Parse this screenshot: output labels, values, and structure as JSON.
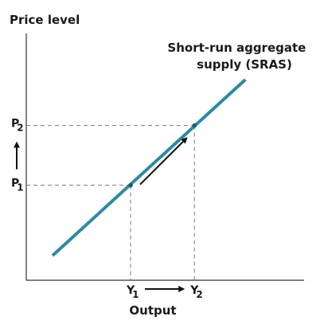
{
  "chart_data": {
    "type": "line",
    "ylabel": "Price level",
    "xlabel": "Output",
    "curve_label": [
      "Short-run aggregate",
      "supply (SRAS)"
    ],
    "curve_color": "#2a8aa6",
    "xlim": [
      0,
      100
    ],
    "ylim": [
      0,
      100
    ],
    "series": [
      {
        "name": "Short-run aggregate supply (SRAS)",
        "x": [
          10,
          83.4
        ],
        "y": [
          10,
          81.3
        ]
      }
    ],
    "points": [
      {
        "x": 39.7,
        "y": 38.5,
        "x_label": {
          "main": "Y",
          "sub": "1"
        },
        "y_label": {
          "main": "P",
          "sub": "1"
        }
      },
      {
        "x": 64.0,
        "y": 62.7,
        "x_label": {
          "main": "Y",
          "sub": "2"
        },
        "y_label": {
          "main": "P",
          "sub": "2"
        }
      }
    ],
    "movement": "increase from point 1 to point 2 along SRAS",
    "grid": false
  }
}
